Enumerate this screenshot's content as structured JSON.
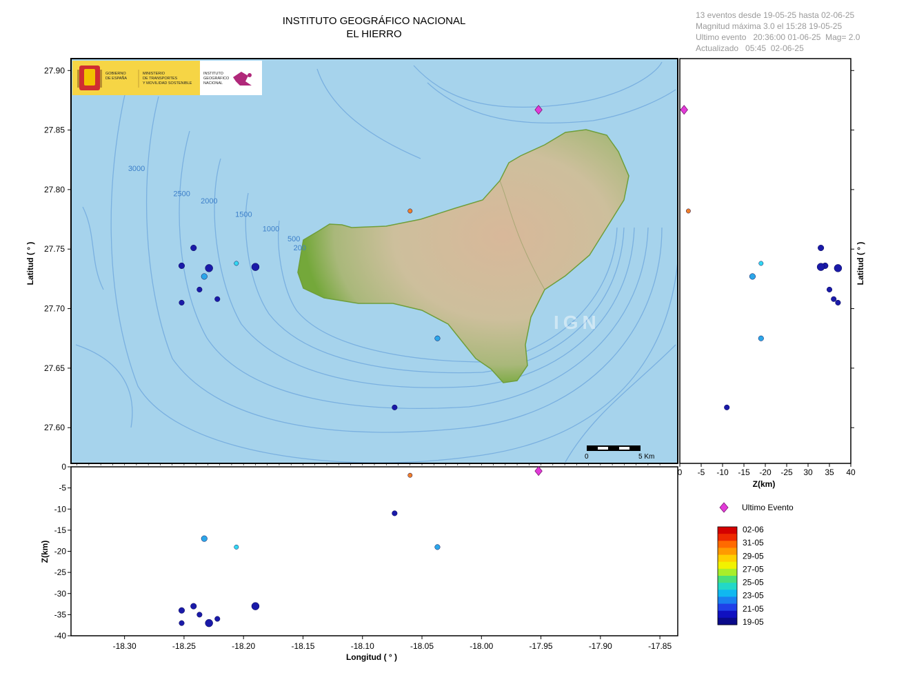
{
  "header": {
    "title_line1": "INSTITUTO GEOGRÁFICO NACIONAL",
    "title_line2": "EL HIERRO"
  },
  "info": {
    "line1": "13 eventos desde 19-05-25 hasta 02-06-25",
    "line2": "Magnitud máxima 3.0 el 15:28 19-05-25",
    "line3": "Ultimo evento   20:36:00 01-06-25  Mag= 2.0",
    "line4": "Actualizado   05:45  02-06-25"
  },
  "logos": {
    "gov_line1": "GOBIERNO",
    "gov_line2": "DE ESPAÑA",
    "min_line1": "MINISTERIO",
    "min_line2": "DE TRANSPORTES",
    "min_line3": "Y MOVILIDAD SOSTENIBLE",
    "ign_line1": "INSTITUTO",
    "ign_line2": "GEOGRÁFICO",
    "ign_line3": "NACIONAL",
    "watermark": "IGN"
  },
  "map": {
    "contour_labels": [
      {
        "text": "3000",
        "lon": -18.297,
        "lat": 27.8155
      },
      {
        "text": "2500",
        "lon": -18.259,
        "lat": 27.7945
      },
      {
        "text": "2000",
        "lon": -18.236,
        "lat": 27.7885
      },
      {
        "text": "1500",
        "lon": -18.207,
        "lat": 27.777
      },
      {
        "text": "1000",
        "lon": -18.184,
        "lat": 27.765
      },
      {
        "text": "500",
        "lon": -18.163,
        "lat": 27.7565
      },
      {
        "text": "200",
        "lon": -18.158,
        "lat": 27.749
      }
    ],
    "scale_bar": {
      "start_label": "0",
      "end_label": "5 Km"
    },
    "colors": {
      "sea": "#a6d3ec",
      "contour": "#7ab0e0",
      "land_low": "#74a83a",
      "land_high": "#d8b89a"
    }
  },
  "legend": {
    "last_event_label": "Ultimo Evento",
    "last_event_color": "#e23ad8",
    "date_labels": [
      "02-06",
      "31-05",
      "29-05",
      "27-05",
      "25-05",
      "23-05",
      "21-05",
      "19-05"
    ],
    "colors_top_to_bottom": [
      "#d40000",
      "#ee2a00",
      "#ff6a00",
      "#ff9a00",
      "#ffcf00",
      "#f2f200",
      "#a8ee2a",
      "#48e07a",
      "#22d8c8",
      "#10b8f0",
      "#1a80f0",
      "#2040e8",
      "#1010c0",
      "#0a0a8a"
    ]
  },
  "chart_data": {
    "type": "scatter",
    "xlabel": "Longitud ( ° )",
    "ylabel": "Latitud ( ° )",
    "zlabel": "Z(km)",
    "xlim": [
      -18.345,
      -17.835
    ],
    "ylim": [
      27.57,
      27.91
    ],
    "zlim": [
      -40,
      0
    ],
    "zlim_right": [
      0,
      40
    ],
    "x_ticks": [
      -18.3,
      -18.25,
      -18.2,
      -18.15,
      -18.1,
      -18.05,
      -18.0,
      -17.95,
      -17.9,
      -17.85
    ],
    "x_tick_labels": [
      "-18.30",
      "-18.25",
      "-18.20",
      "-18.15",
      "-18.10",
      "-18.05",
      "-18.00",
      "-17.95",
      "-17.90",
      "-17.85"
    ],
    "y_ticks": [
      27.6,
      27.65,
      27.7,
      27.75,
      27.8,
      27.85,
      27.9
    ],
    "y_tick_labels": [
      "27.60",
      "27.65",
      "27.70",
      "27.75",
      "27.80",
      "27.85",
      "27.90"
    ],
    "z_ticks": [
      0,
      -5,
      -10,
      -15,
      -20,
      -25,
      -30,
      -35,
      -40
    ],
    "z_tick_labels": [
      "0",
      "-5",
      "-10",
      "-15",
      "-20",
      "-25",
      "-30",
      "-35",
      "-40"
    ],
    "zr_ticks": [
      0,
      5,
      10,
      15,
      20,
      25,
      30,
      35,
      40
    ],
    "zr_tick_labels": [
      "0",
      "-5",
      "-10",
      "-15",
      "-20",
      "-25",
      "30",
      "35",
      "40"
    ],
    "events": [
      {
        "lon": -18.242,
        "lat": 27.751,
        "depth": 33,
        "mag": 2.0,
        "color": "#1a1aa8"
      },
      {
        "lon": -18.252,
        "lat": 27.736,
        "depth": 34,
        "mag": 2.0,
        "color": "#1a1aa8"
      },
      {
        "lon": -18.229,
        "lat": 27.734,
        "depth": 37,
        "mag": 3.0,
        "color": "#1a1aa8"
      },
      {
        "lon": -18.19,
        "lat": 27.735,
        "depth": 33,
        "mag": 3.0,
        "color": "#1a1aa8"
      },
      {
        "lon": -18.233,
        "lat": 27.727,
        "depth": 17,
        "mag": 2.0,
        "color": "#2ca6e8"
      },
      {
        "lon": -18.206,
        "lat": 27.738,
        "depth": 19,
        "mag": 1.3,
        "color": "#33d8f2"
      },
      {
        "lon": -18.237,
        "lat": 27.716,
        "depth": 35,
        "mag": 1.7,
        "color": "#1a1aa8"
      },
      {
        "lon": -18.222,
        "lat": 27.708,
        "depth": 36,
        "mag": 1.7,
        "color": "#1a1aa8"
      },
      {
        "lon": -18.252,
        "lat": 27.705,
        "depth": 37,
        "mag": 1.7,
        "color": "#1a1aa8"
      },
      {
        "lon": -18.06,
        "lat": 27.782,
        "depth": 2,
        "mag": 1.3,
        "color": "#ef7f2a"
      },
      {
        "lon": -18.037,
        "lat": 27.675,
        "depth": 19,
        "mag": 1.7,
        "color": "#2ca6e8"
      },
      {
        "lon": -18.073,
        "lat": 27.617,
        "depth": 11,
        "mag": 1.7,
        "color": "#1a1aa8"
      },
      {
        "lon": -17.952,
        "lat": 27.867,
        "depth": 1,
        "mag": 2.0,
        "color": "#e23ad8",
        "last": true
      }
    ]
  }
}
